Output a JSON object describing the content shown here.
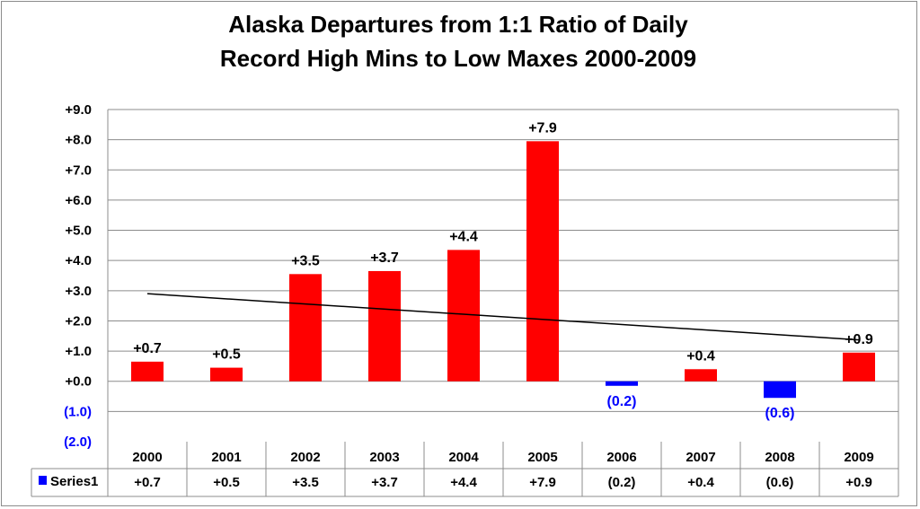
{
  "chart_data": {
    "type": "bar",
    "title": [
      "Alaska Departures from 1:1 Ratio of Daily",
      "Record High Mins to Low Maxes 2000-2009"
    ],
    "categories": [
      "2000",
      "2001",
      "2002",
      "2003",
      "2004",
      "2005",
      "2006",
      "2007",
      "2008",
      "2009"
    ],
    "series": [
      {
        "name": "Series1",
        "values": [
          0.65,
          0.45,
          3.55,
          3.65,
          4.35,
          7.95,
          -0.15,
          0.4,
          -0.55,
          0.95
        ],
        "labels": [
          "+0.7",
          "+0.5",
          "+3.5",
          "+3.7",
          "+4.4",
          "+7.9",
          "(0.2)",
          "+0.4",
          "(0.6)",
          "+0.9"
        ]
      }
    ],
    "ylim": [
      -2,
      9
    ],
    "yticks": [
      9,
      8,
      7,
      6,
      5,
      4,
      3,
      2,
      1,
      0,
      -1,
      -2
    ],
    "ytick_labels": [
      "+9.0",
      "+8.0",
      "+7.0",
      "+6.0",
      "+5.0",
      "+4.0",
      "+3.0",
      "+2.0",
      "+1.0",
      "+0.0",
      "(1.0)",
      "(2.0)"
    ],
    "trendline": {
      "type": "linear",
      "start": 2.9,
      "end": 1.37
    },
    "data_table": true,
    "legend_key_label": "Series1",
    "grid": true,
    "colors": {
      "positive": "#ff0000",
      "negative": "#0000ff",
      "negative_label": "#0000ff",
      "trendline": "#000000",
      "grid": "#8c8c8c"
    }
  }
}
